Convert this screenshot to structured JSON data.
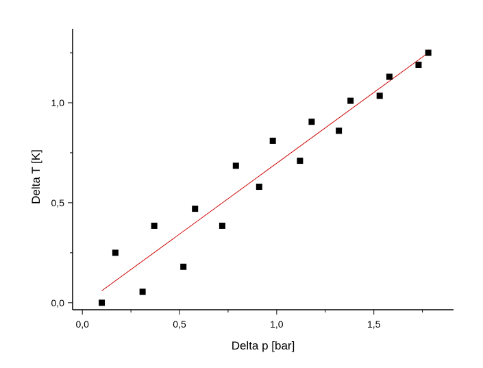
{
  "chart_data": {
    "type": "scatter",
    "title": "",
    "xlabel": "Delta p [bar]",
    "ylabel": "Delta T [K]",
    "xlim": [
      -0.05,
      1.91
    ],
    "ylim": [
      -0.035,
      1.37
    ],
    "xticks": [
      {
        "value": 0.0,
        "label": "0,0"
      },
      {
        "value": 0.5,
        "label": "0,5"
      },
      {
        "value": 1.0,
        "label": "1,0"
      },
      {
        "value": 1.5,
        "label": "1,5"
      }
    ],
    "yticks": [
      {
        "value": 0.0,
        "label": "0,0"
      },
      {
        "value": 0.5,
        "label": "0,5"
      },
      {
        "value": 1.0,
        "label": "1,0"
      }
    ],
    "x_minor_step": 0.25,
    "y_minor_step": 0.25,
    "grid": false,
    "legend": "none",
    "series": [
      {
        "marker": "square",
        "color": "#000000",
        "points": [
          {
            "x": 0.1,
            "y": 0.0
          },
          {
            "x": 0.17,
            "y": 0.25
          },
          {
            "x": 0.31,
            "y": 0.055
          },
          {
            "x": 0.37,
            "y": 0.385
          },
          {
            "x": 0.52,
            "y": 0.18
          },
          {
            "x": 0.58,
            "y": 0.47
          },
          {
            "x": 0.72,
            "y": 0.385
          },
          {
            "x": 0.79,
            "y": 0.685
          },
          {
            "x": 0.91,
            "y": 0.58
          },
          {
            "x": 0.98,
            "y": 0.81
          },
          {
            "x": 1.12,
            "y": 0.71
          },
          {
            "x": 1.18,
            "y": 0.905
          },
          {
            "x": 1.32,
            "y": 0.86
          },
          {
            "x": 1.38,
            "y": 1.01
          },
          {
            "x": 1.53,
            "y": 1.035
          },
          {
            "x": 1.58,
            "y": 1.13
          },
          {
            "x": 1.73,
            "y": 1.19
          },
          {
            "x": 1.78,
            "y": 1.25
          }
        ]
      }
    ],
    "fit_line": {
      "color": "#cc0000",
      "start": {
        "x": 0.1,
        "y": 0.06
      },
      "end": {
        "x": 1.78,
        "y": 1.25
      }
    }
  }
}
